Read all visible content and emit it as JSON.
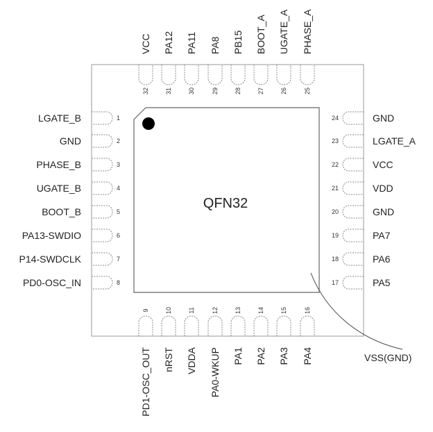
{
  "package_label": "QFN32",
  "exposed_pad_label": "VSS(GND)",
  "pins_left": [
    {
      "num": "1",
      "name": "LGATE_B"
    },
    {
      "num": "2",
      "name": "GND"
    },
    {
      "num": "3",
      "name": "PHASE_B"
    },
    {
      "num": "4",
      "name": "UGATE_B"
    },
    {
      "num": "5",
      "name": "BOOT_B"
    },
    {
      "num": "6",
      "name": "PA13-SWDIO"
    },
    {
      "num": "7",
      "name": "P14-SWDCLK"
    },
    {
      "num": "8",
      "name": "PD0-OSC_IN"
    }
  ],
  "pins_bottom": [
    {
      "num": "9",
      "name": "PD1-OSC_OUT"
    },
    {
      "num": "10",
      "name": "nRST"
    },
    {
      "num": "11",
      "name": "VDDA"
    },
    {
      "num": "12",
      "name": "PA0-WKUP"
    },
    {
      "num": "13",
      "name": "PA1"
    },
    {
      "num": "14",
      "name": "PA2"
    },
    {
      "num": "15",
      "name": "PA3"
    },
    {
      "num": "16",
      "name": "PA4"
    }
  ],
  "pins_right": [
    {
      "num": "17",
      "name": "PA5"
    },
    {
      "num": "18",
      "name": "PA6"
    },
    {
      "num": "19",
      "name": "PA7"
    },
    {
      "num": "20",
      "name": "GND"
    },
    {
      "num": "21",
      "name": "VDD"
    },
    {
      "num": "22",
      "name": "VCC"
    },
    {
      "num": "23",
      "name": "LGATE_A"
    },
    {
      "num": "24",
      "name": "GND"
    }
  ],
  "pins_top": [
    {
      "num": "25",
      "name": "PHASE_A"
    },
    {
      "num": "26",
      "name": "UGATE_A"
    },
    {
      "num": "27",
      "name": "BOOT_A"
    },
    {
      "num": "28",
      "name": "PB15"
    },
    {
      "num": "29",
      "name": "PA8"
    },
    {
      "num": "30",
      "name": "PA11"
    },
    {
      "num": "31",
      "name": "PA12"
    },
    {
      "num": "32",
      "name": "VCC"
    }
  ]
}
